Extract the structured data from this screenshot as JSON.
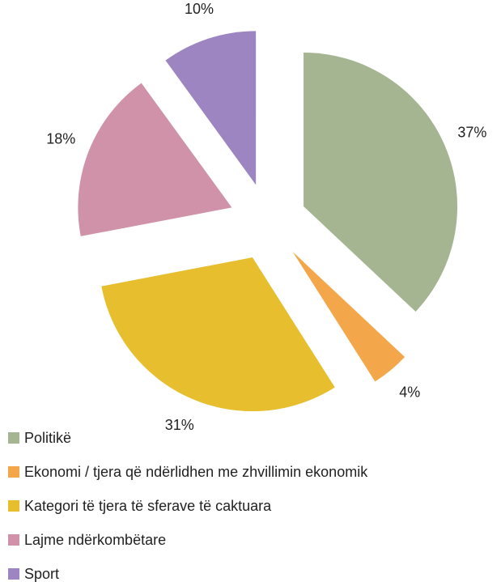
{
  "chart_data": {
    "type": "pie",
    "categories": [
      "Politikë",
      "Ekonomi / tjera që ndërlidhen me zhvillimin ekonomik",
      "Kategori të tjera të sferave të caktuara",
      "Lajme ndërkombëtare",
      "Sport"
    ],
    "values": [
      37,
      4,
      31,
      18,
      10
    ],
    "value_labels": [
      "37%",
      "4%",
      "31%",
      "18%",
      "10%"
    ],
    "colors": [
      "#a5b592",
      "#f4a64a",
      "#e6be2e",
      "#d092a8",
      "#9d85c1"
    ],
    "exploded": true,
    "legend": "bottom"
  }
}
